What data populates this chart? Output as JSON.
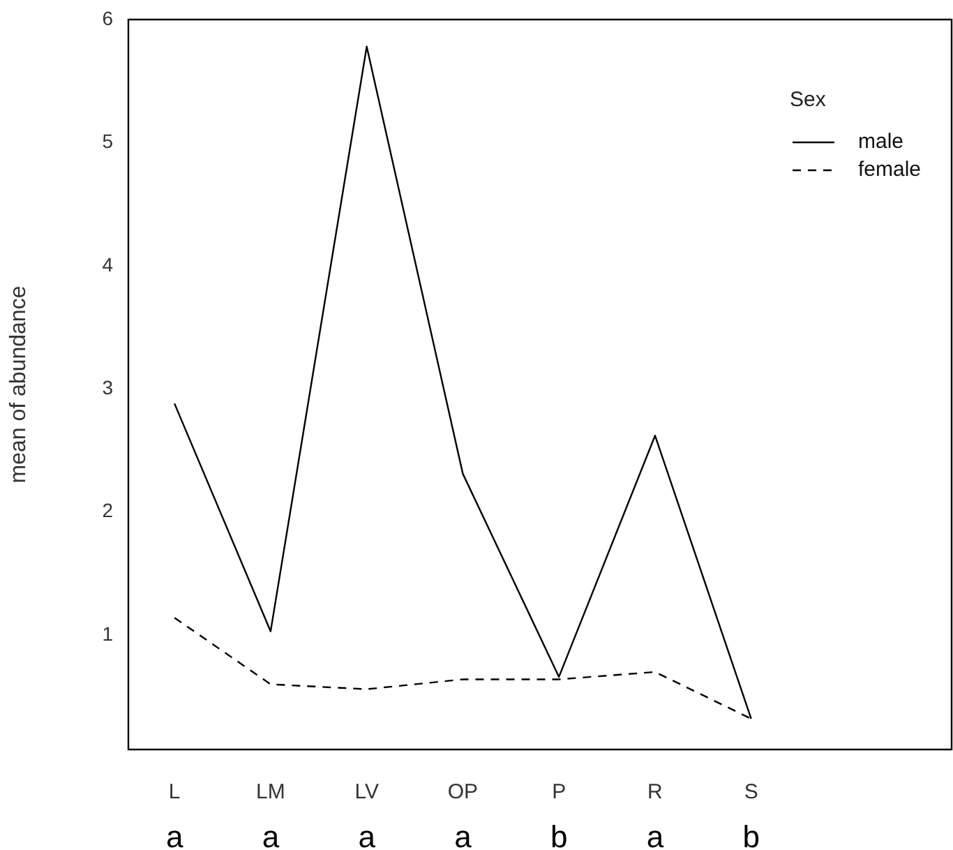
{
  "chart_data": {
    "type": "line",
    "ylabel": "mean of abundance",
    "legend_title": "Sex",
    "legend": "top right",
    "categories": [
      "L",
      "LM",
      "LV",
      "OP",
      "P",
      "R",
      "S"
    ],
    "series": [
      {
        "name": "male",
        "color": "#000000",
        "line_style": "solid",
        "values": [
          2.88,
          1.03,
          5.78,
          2.31,
          0.66,
          2.62,
          0.32
        ]
      },
      {
        "name": "female",
        "color": "#000000",
        "line_style": "dashed",
        "values": [
          1.14,
          0.6,
          0.56,
          0.64,
          0.64,
          0.7,
          0.32
        ]
      }
    ],
    "ylim": [
      0.07,
      6
    ],
    "yticks": [
      1,
      2,
      3,
      4,
      5,
      6
    ],
    "marker": "none",
    "annotations": [
      "a",
      "a",
      "a",
      "a",
      "b",
      "a",
      "b"
    ]
  }
}
